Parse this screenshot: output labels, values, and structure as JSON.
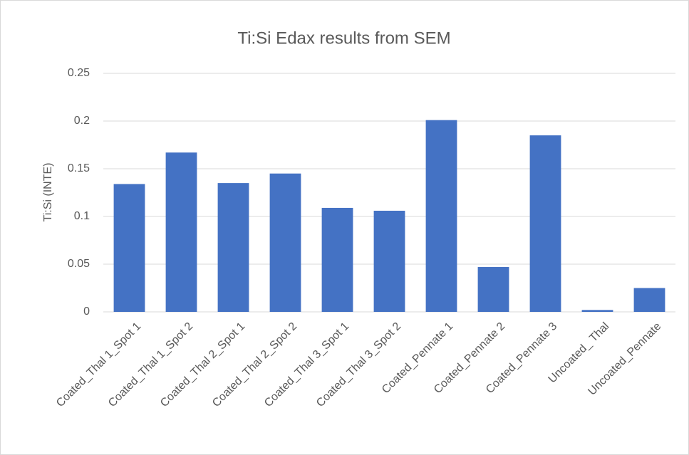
{
  "chart_data": {
    "type": "bar",
    "title": "Ti:Si Edax results from SEM",
    "y_label": "Ti:Si (INTE)",
    "categories": [
      "Coated_Thal 1_Spot 1",
      "Coated_Thal 1_Spot 2",
      "Coated_Thal 2_Spot 1",
      "Coated_Thal 2_Spot 2",
      "Coated_Thal 3_Spot 1",
      "Coated_Thal 3_Spot 2",
      "Coated_Pennate 1",
      "Coated_Pennate 2",
      "Coated_Pennate 3",
      "Uncoated_ Thal",
      "Uncoated_Pennate"
    ],
    "values": [
      0.134,
      0.167,
      0.135,
      0.145,
      0.109,
      0.106,
      0.201,
      0.047,
      0.185,
      0.002,
      0.025
    ],
    "color": "#4472c4",
    "ylim": [
      0,
      0.25
    ],
    "yticks": [
      0,
      0.05,
      0.1,
      0.15,
      0.2,
      0.25
    ],
    "grid": true
  }
}
